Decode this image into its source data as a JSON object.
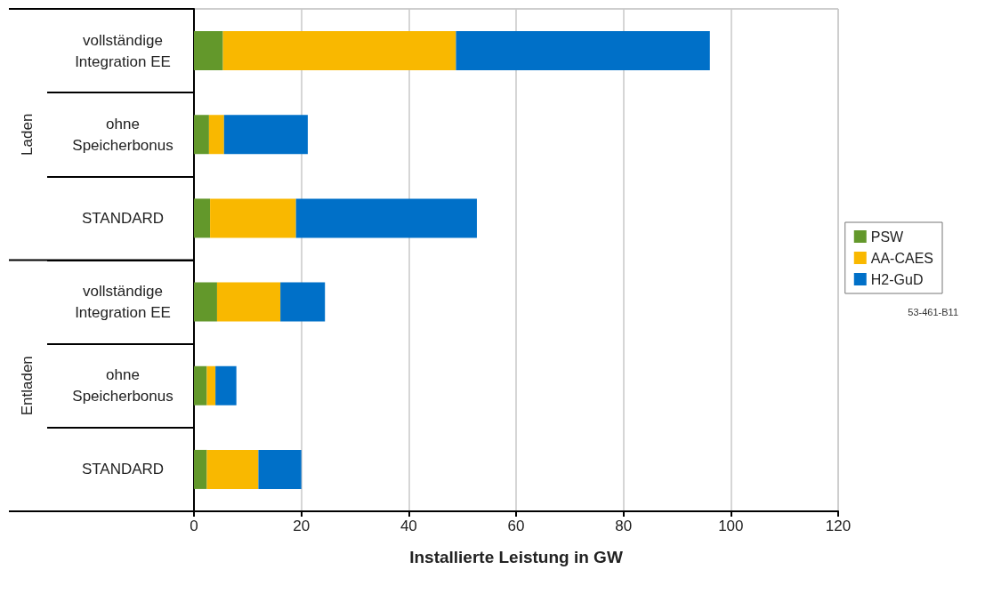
{
  "chart_data": {
    "type": "bar",
    "orientation": "horizontal",
    "stacked": true,
    "xlabel": "Installierte Leistung in GW",
    "categories": [
      "vollständige\nIntegration EE",
      "ohne\nSpeicherbonus",
      "STANDARD",
      "vollständige\nIntegration EE",
      "ohne\nSpeicherbonus",
      "STANDARD"
    ],
    "series": [
      {
        "name": "PSW",
        "color": "#63982b",
        "values": [
          5.4,
          2.8,
          3.0,
          4.3,
          2.4,
          2.4
        ]
      },
      {
        "name": "AA-CAES",
        "color": "#f9b800",
        "values": [
          43.4,
          2.8,
          16.0,
          11.8,
          1.6,
          9.6
        ]
      },
      {
        "name": "H2-GuD",
        "color": "#0070c8",
        "values": [
          47.3,
          15.6,
          33.7,
          8.3,
          3.9,
          8.0
        ]
      }
    ],
    "xlim": [
      0,
      120
    ],
    "xticks": [
      0,
      20,
      40,
      60,
      80,
      100,
      120
    ],
    "grid": "x",
    "legend": "right",
    "annotations": [
      "Laden",
      "Entladen",
      "53-461-B11"
    ]
  }
}
